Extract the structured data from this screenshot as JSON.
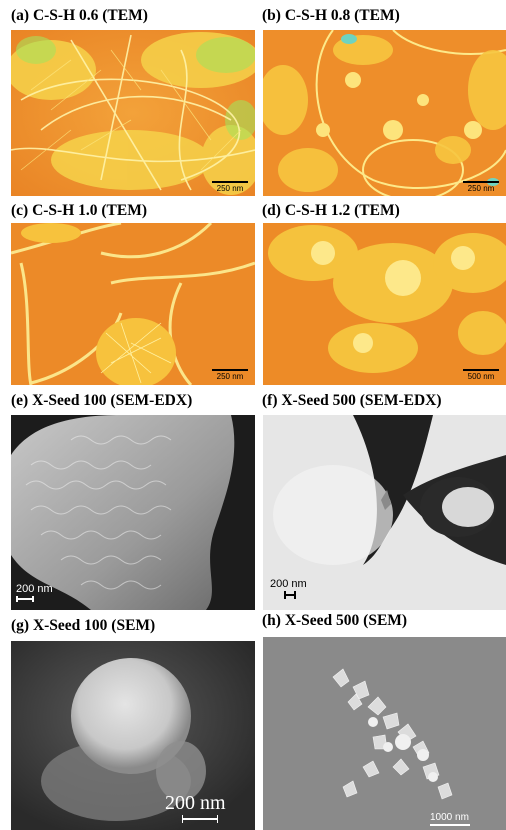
{
  "figure": {
    "panels": [
      {
        "id": "a",
        "label": "(a) C-S-H 0.6 (TEM)",
        "scale": "250 nm"
      },
      {
        "id": "b",
        "label": "(b) C-S-H 0.8 (TEM)",
        "scale": "250 nm"
      },
      {
        "id": "c",
        "label": "(c) C-S-H 1.0 (TEM)",
        "scale": "250 nm"
      },
      {
        "id": "d",
        "label": "(d) C-S-H 1.2 (TEM)",
        "scale": "500 nm"
      },
      {
        "id": "e",
        "label": "(e) X-Seed 100 (SEM-EDX)",
        "scale": "200 nm"
      },
      {
        "id": "f",
        "label": "(f) X-Seed 500 (SEM-EDX)",
        "scale": "200 nm"
      },
      {
        "id": "g",
        "label": "(g) X-Seed 100 (SEM)",
        "scale": "200 nm"
      },
      {
        "id": "h",
        "label": "(h) X-Seed 500 (SEM)",
        "scale": "1000 nm"
      }
    ]
  }
}
